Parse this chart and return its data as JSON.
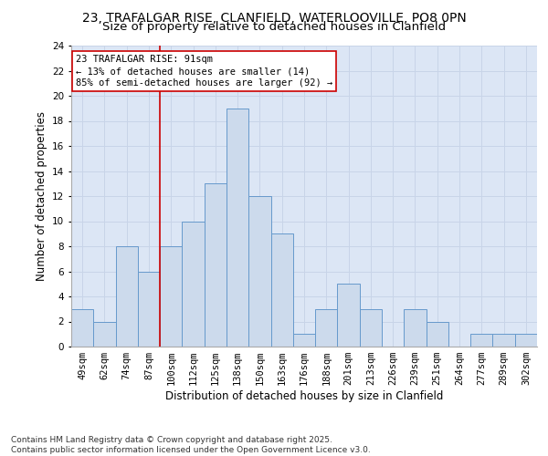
{
  "title_line1": "23, TRAFALGAR RISE, CLANFIELD, WATERLOOVILLE, PO8 0PN",
  "title_line2": "Size of property relative to detached houses in Clanfield",
  "xlabel": "Distribution of detached houses by size in Clanfield",
  "ylabel": "Number of detached properties",
  "footer": "Contains HM Land Registry data © Crown copyright and database right 2025.\nContains public sector information licensed under the Open Government Licence v3.0.",
  "categories": [
    "49sqm",
    "62sqm",
    "74sqm",
    "87sqm",
    "100sqm",
    "112sqm",
    "125sqm",
    "138sqm",
    "150sqm",
    "163sqm",
    "176sqm",
    "188sqm",
    "201sqm",
    "213sqm",
    "226sqm",
    "239sqm",
    "251sqm",
    "264sqm",
    "277sqm",
    "289sqm",
    "302sqm"
  ],
  "values": [
    3,
    2,
    8,
    6,
    8,
    10,
    13,
    19,
    12,
    9,
    1,
    3,
    5,
    3,
    0,
    3,
    2,
    0,
    1,
    1,
    1
  ],
  "bar_color": "#ccdaec",
  "bar_edge_color": "#6699cc",
  "grid_color": "#c8d4e8",
  "background_color": "#dce6f5",
  "annotation_text": "23 TRAFALGAR RISE: 91sqm\n← 13% of detached houses are smaller (14)\n85% of semi-detached houses are larger (92) →",
  "vline_x_index": 3.5,
  "vline_color": "#cc0000",
  "annotation_box_edge_color": "#cc0000",
  "ylim": [
    0,
    24
  ],
  "yticks": [
    0,
    2,
    4,
    6,
    8,
    10,
    12,
    14,
    16,
    18,
    20,
    22,
    24
  ],
  "title1_fontsize": 10,
  "title2_fontsize": 9.5,
  "axis_label_fontsize": 8.5,
  "tick_fontsize": 7.5,
  "footer_fontsize": 6.5,
  "annotation_fontsize": 7.5
}
